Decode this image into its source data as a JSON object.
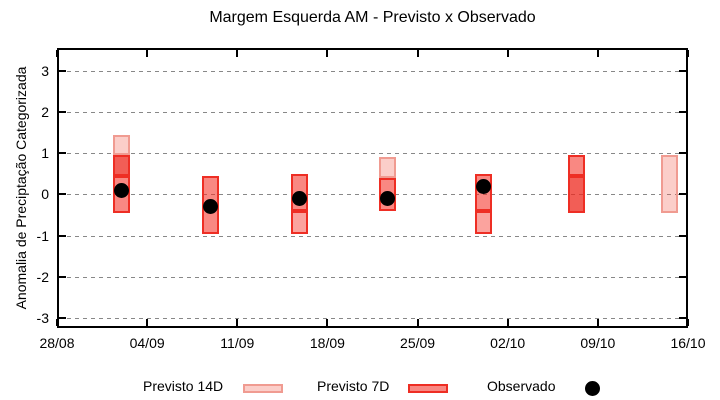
{
  "chart_data": {
    "type": "bar",
    "title": "Margem Esquerda AM - Previsto x Observado",
    "ylabel": "Anomalia de Preciptação Categorizada",
    "xlabel": "",
    "x_tick_labels": [
      "28/08",
      "04/09",
      "11/09",
      "18/09",
      "25/09",
      "02/10",
      "09/10",
      "16/10"
    ],
    "y_ticks": [
      3,
      2,
      1,
      0,
      -1,
      -2,
      -3
    ],
    "y_tick_labels": [
      "3",
      "2",
      "1",
      "0",
      "-1",
      "-2",
      "-3"
    ],
    "ylim": [
      -3.24,
      3.55
    ],
    "grid": "horizontal-dashed",
    "legend": [
      {
        "label": "Previsto 14D",
        "style": "p14"
      },
      {
        "label": "Previsto 7D",
        "style": "p7"
      },
      {
        "label": "Observado",
        "style": "obs"
      }
    ],
    "groups": [
      {
        "x_frac": 0.103,
        "observado": 0.1,
        "segments": [
          {
            "hi": 1.45,
            "lo": 0.95,
            "style": "p14"
          },
          {
            "hi": 0.95,
            "lo": 0.45,
            "style": "overlap"
          },
          {
            "hi": 0.45,
            "lo": -0.45,
            "style": "p7"
          }
        ]
      },
      {
        "x_frac": 0.243,
        "observado": -0.3,
        "segments": [
          {
            "hi": 0.45,
            "lo": -0.95,
            "style": "p7"
          }
        ]
      },
      {
        "x_frac": 0.384,
        "observado": -0.1,
        "segments": [
          {
            "hi": 0.5,
            "lo": -0.4,
            "style": "p7"
          },
          {
            "hi": -0.4,
            "lo": -0.95,
            "style": "p7light"
          }
        ]
      },
      {
        "x_frac": 0.524,
        "observado": -0.1,
        "segments": [
          {
            "hi": 0.9,
            "lo": 0.4,
            "style": "p14"
          },
          {
            "hi": 0.4,
            "lo": -0.4,
            "style": "p7"
          }
        ]
      },
      {
        "x_frac": 0.676,
        "observado": 0.2,
        "segments": [
          {
            "hi": 0.5,
            "lo": -0.4,
            "style": "p7"
          },
          {
            "hi": -0.4,
            "lo": -0.95,
            "style": "p7light"
          }
        ]
      },
      {
        "x_frac": 0.823,
        "observado": null,
        "segments": [
          {
            "hi": 0.95,
            "lo": 0.45,
            "style": "p7"
          },
          {
            "hi": 0.45,
            "lo": -0.45,
            "style": "overlap"
          }
        ]
      },
      {
        "x_frac": 0.97,
        "observado": null,
        "segments": [
          {
            "hi": 0.95,
            "lo": -0.45,
            "style": "p14"
          }
        ]
      }
    ],
    "colors": {
      "p14": {
        "fill": "rgba(242,93,75,0.30)",
        "border": "#f09b91"
      },
      "p7": {
        "fill": "rgba(245,45,35,0.57)",
        "border": "#ee2e24"
      },
      "overlap": {
        "fill": "rgba(238,40,30,0.75)",
        "border": "#ee2e24"
      },
      "p7light": {
        "fill": "rgba(245,45,35,0.44)",
        "border": "#ee2e24"
      },
      "obs": "#000000",
      "grid": "#888888",
      "axis": "#000000"
    }
  }
}
